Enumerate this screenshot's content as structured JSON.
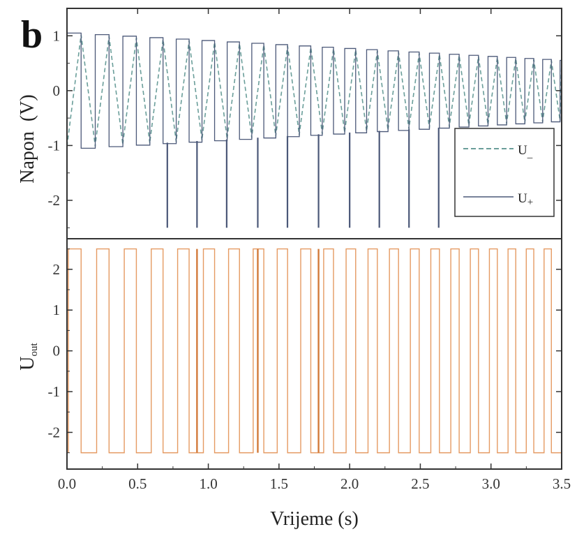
{
  "panel_label": "b",
  "colors": {
    "u_minus": "#6a9e9a",
    "u_plus": "#4b5878",
    "u_out": "#e59a62",
    "u_out_dark": "#d27a3a",
    "axis": "#333333"
  },
  "chart_data": [
    {
      "type": "line",
      "id": "top",
      "ylabel_main": "Napon",
      "ylabel_unit": "(V)",
      "xlim": [
        0,
        3.5
      ],
      "ylim": [
        -2.7,
        1.5
      ],
      "yticks": [
        1,
        0,
        -1,
        -2
      ],
      "ytick_labels": [
        "1",
        "0",
        "-1",
        "-2"
      ],
      "grid": false,
      "legend_position": "right",
      "legend": [
        {
          "label_main": "U",
          "label_sub": "_",
          "style": "dashed"
        },
        {
          "label_main": "U",
          "label_sub": "+",
          "style": "solid"
        }
      ],
      "series": [
        {
          "name": "U₋",
          "style": "dashed",
          "waveform": "triangle",
          "period_start": 0.2,
          "period_end": 0.12,
          "amplitude_start": 1.05,
          "amplitude_end": 0.55
        },
        {
          "name": "U₊",
          "style": "solid",
          "waveform": "square",
          "period_start": 0.2,
          "period_end": 0.12,
          "amplitude_start": 1.05,
          "amplitude_end": 0.55,
          "spike_times": [
            0.71,
            0.92,
            1.13,
            1.35,
            1.56,
            1.78,
            2.0,
            2.21,
            2.42,
            2.63
          ],
          "spike_value": -2.5
        }
      ]
    },
    {
      "type": "line",
      "id": "bottom",
      "ylabel_main": "U",
      "ylabel_sub": "out",
      "xlim": [
        0,
        3.5
      ],
      "ylim": [
        -2.9,
        2.75
      ],
      "yticks": [
        2,
        1,
        0,
        -1,
        -2
      ],
      "ytick_labels": [
        "2",
        "1",
        "0",
        "-1",
        "-2"
      ],
      "xticks": [
        0.0,
        0.5,
        1.0,
        1.5,
        2.0,
        2.5,
        3.0,
        3.5
      ],
      "xtick_labels": [
        "0.0",
        "0.5",
        "1.0",
        "1.5",
        "2.0",
        "2.5",
        "3.0",
        "3.5"
      ],
      "xlabel": "Vrijeme (s)",
      "grid": false,
      "series": [
        {
          "name": "U_out",
          "style": "solid",
          "waveform": "square",
          "high": 2.5,
          "low": -2.5,
          "period_start": 0.2,
          "period_end": 0.12,
          "dark_edges": [
            0.92,
            1.35,
            1.78
          ]
        }
      ]
    }
  ]
}
